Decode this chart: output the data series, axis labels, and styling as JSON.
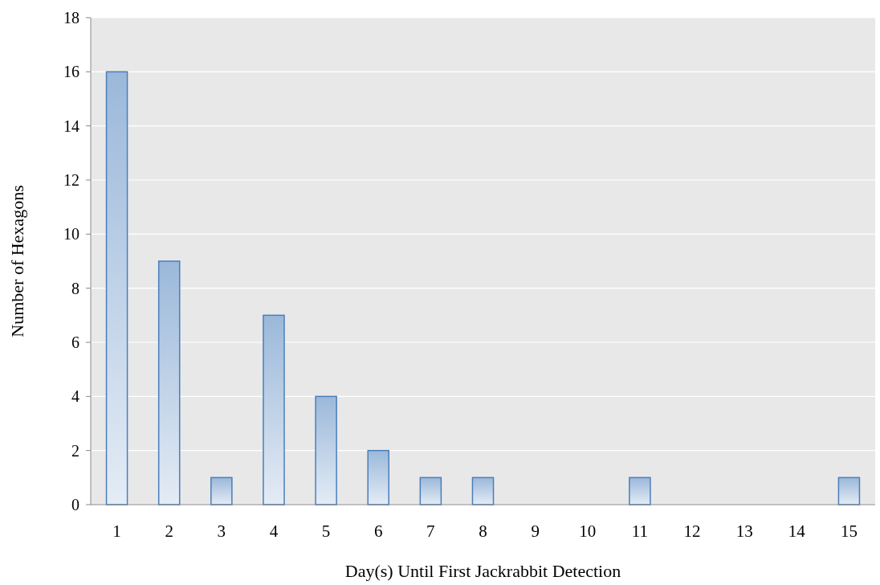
{
  "chart_data": {
    "type": "bar",
    "xlabel": "Day(s) Until First Jackrabbit Detection",
    "ylabel": "Number of Hexagons",
    "categories": [
      "1",
      "2",
      "3",
      "4",
      "5",
      "6",
      "7",
      "8",
      "9",
      "10",
      "11",
      "12",
      "13",
      "14",
      "15"
    ],
    "values": [
      16,
      9,
      1,
      7,
      4,
      2,
      1,
      1,
      0,
      0,
      1,
      0,
      0,
      0,
      1
    ],
    "color": "#4a7ebb",
    "ylim": [
      0,
      18
    ],
    "yticks": [
      0,
      2,
      4,
      6,
      8,
      10,
      12,
      14,
      16,
      18
    ],
    "grid": "y"
  }
}
